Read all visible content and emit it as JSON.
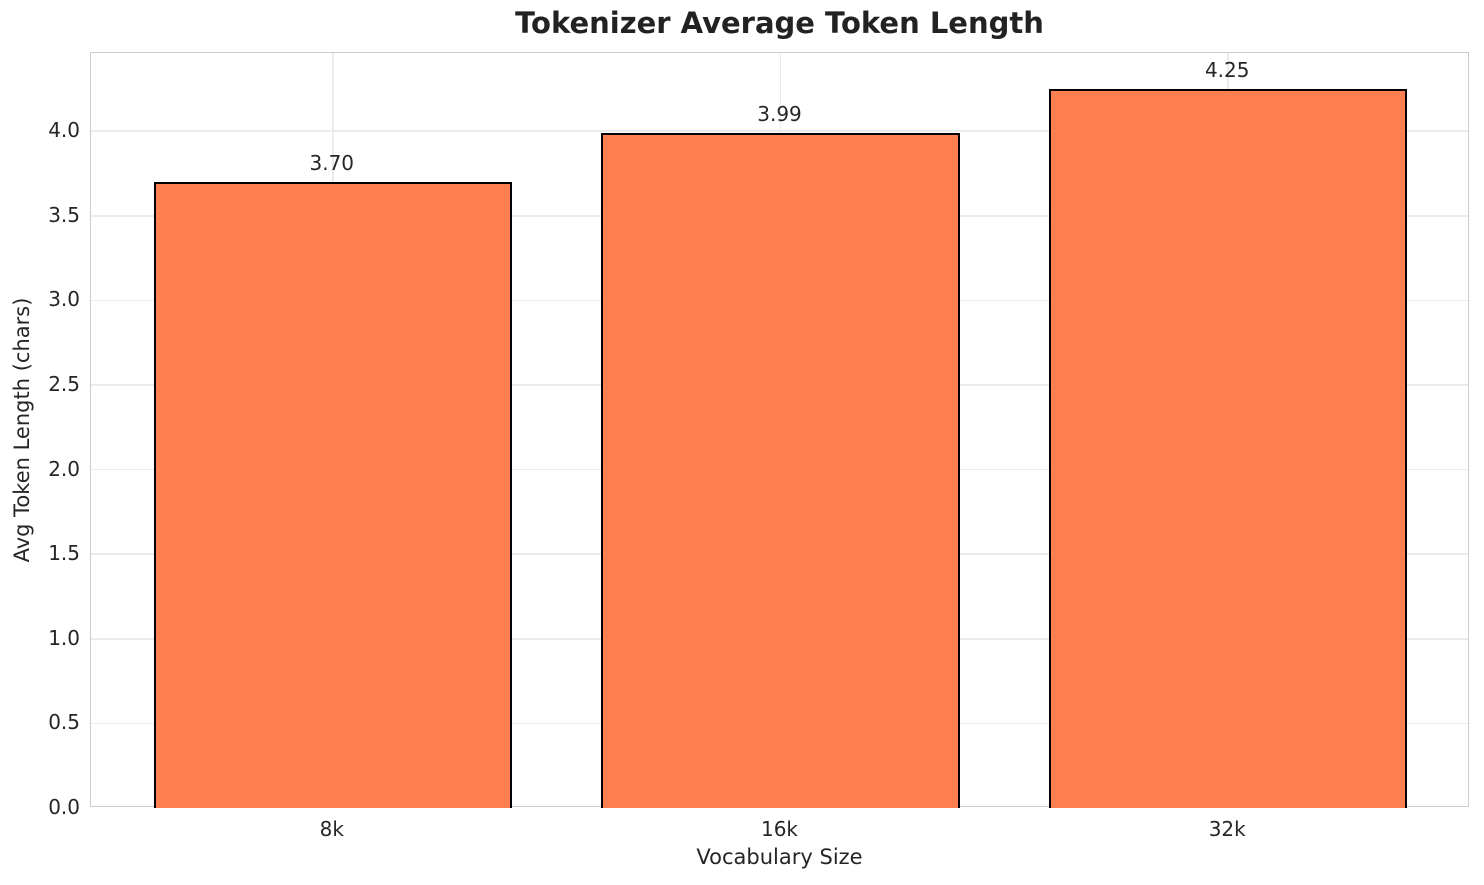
{
  "chart_data": {
    "type": "bar",
    "title": "Tokenizer Average Token Length",
    "xlabel": "Vocabulary Size",
    "ylabel": "Avg Token Length (chars)",
    "categories": [
      "8k",
      "16k",
      "32k"
    ],
    "values": [
      3.7,
      3.99,
      4.25
    ],
    "bar_labels": [
      "3.70",
      "3.99",
      "4.25"
    ],
    "ylim": [
      0,
      4.4625
    ],
    "y_ticks": [
      0.0,
      0.5,
      1.0,
      1.5,
      2.0,
      2.5,
      3.0,
      3.5,
      4.0
    ],
    "y_tick_labels": [
      "0.0",
      "0.5",
      "1.0",
      "1.5",
      "2.0",
      "2.5",
      "3.0",
      "3.5",
      "4.0"
    ],
    "grid": true,
    "legend_position": "none",
    "colors": {
      "bar_fill": "#FF7F50",
      "bar_edge": "#000000",
      "grid_line": "#ebebeb",
      "axis_spine": "#cccccc",
      "tick_text": "#262626",
      "title_text": "#222222",
      "background": "#ffffff"
    }
  }
}
